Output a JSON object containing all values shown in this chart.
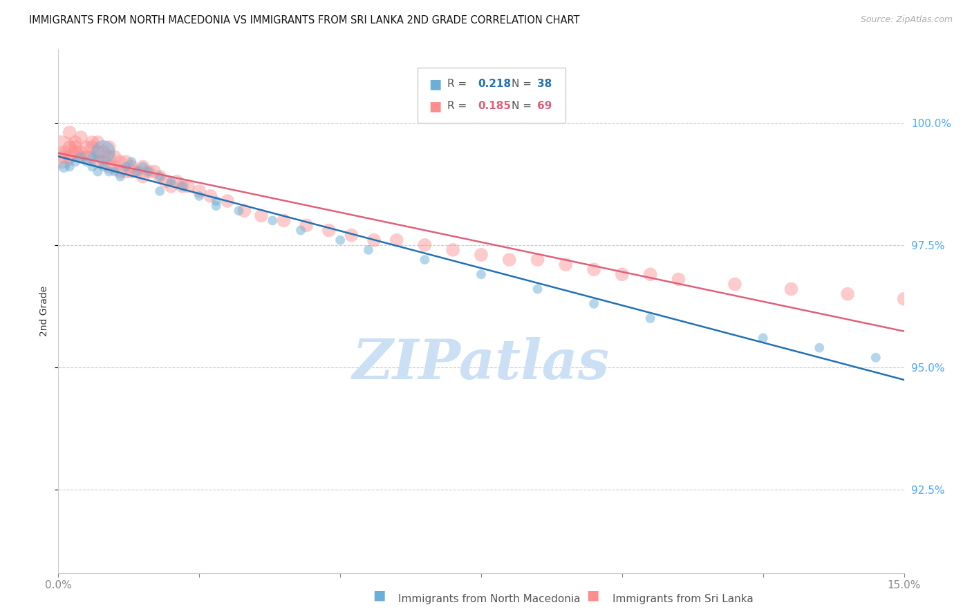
{
  "title": "IMMIGRANTS FROM NORTH MACEDONIA VS IMMIGRANTS FROM SRI LANKA 2ND GRADE CORRELATION CHART",
  "source": "Source: ZipAtlas.com",
  "ylabel": "2nd Grade",
  "ytick_values": [
    1.0,
    0.975,
    0.95,
    0.925
  ],
  "xmin": 0.0,
  "xmax": 0.15,
  "ymin": 0.908,
  "ymax": 1.015,
  "blue_color": "#6baed6",
  "pink_color": "#fc8d8d",
  "blue_line_color": "#2171b5",
  "pink_line_color": "#e0607a",
  "legend_R_blue": "0.218",
  "legend_N_blue": "38",
  "legend_R_pink": "0.185",
  "legend_N_pink": "69",
  "background_color": "#ffffff",
  "grid_color": "#cccccc",
  "tick_color": "#4da6ff",
  "watermark_text": "ZIPatlas",
  "watermark_color": "#cce0f5",
  "blue_scatter_x": [
    0.001,
    0.002,
    0.003,
    0.004,
    0.005,
    0.006,
    0.006,
    0.007,
    0.008,
    0.009,
    0.01,
    0.011,
    0.012,
    0.013,
    0.014,
    0.015,
    0.016,
    0.018,
    0.02,
    0.022,
    0.025,
    0.028,
    0.032,
    0.038,
    0.043,
    0.05,
    0.055,
    0.065,
    0.075,
    0.085,
    0.095,
    0.105,
    0.125,
    0.135,
    0.145,
    0.028,
    0.018,
    0.008
  ],
  "blue_scatter_y": [
    0.991,
    0.991,
    0.992,
    0.993,
    0.992,
    0.993,
    0.991,
    0.99,
    0.991,
    0.99,
    0.99,
    0.989,
    0.991,
    0.992,
    0.99,
    0.991,
    0.99,
    0.989,
    0.988,
    0.987,
    0.985,
    0.983,
    0.982,
    0.98,
    0.978,
    0.976,
    0.974,
    0.972,
    0.969,
    0.966,
    0.963,
    0.96,
    0.956,
    0.954,
    0.952,
    0.984,
    0.986,
    0.994
  ],
  "blue_scatter_s": [
    150,
    100,
    100,
    100,
    100,
    100,
    100,
    100,
    100,
    100,
    100,
    100,
    100,
    100,
    100,
    100,
    100,
    100,
    100,
    100,
    100,
    100,
    100,
    100,
    100,
    100,
    100,
    100,
    100,
    100,
    100,
    100,
    100,
    100,
    100,
    100,
    100,
    600
  ],
  "pink_scatter_x": [
    0.0005,
    0.001,
    0.001,
    0.002,
    0.002,
    0.003,
    0.003,
    0.004,
    0.004,
    0.005,
    0.005,
    0.006,
    0.006,
    0.007,
    0.007,
    0.008,
    0.008,
    0.009,
    0.009,
    0.01,
    0.01,
    0.011,
    0.011,
    0.012,
    0.012,
    0.013,
    0.013,
    0.014,
    0.015,
    0.015,
    0.016,
    0.017,
    0.018,
    0.019,
    0.02,
    0.021,
    0.022,
    0.023,
    0.025,
    0.027,
    0.03,
    0.033,
    0.036,
    0.04,
    0.044,
    0.048,
    0.052,
    0.056,
    0.06,
    0.065,
    0.07,
    0.075,
    0.08,
    0.085,
    0.09,
    0.095,
    0.1,
    0.105,
    0.11,
    0.12,
    0.13,
    0.14,
    0.15,
    0.003,
    0.006,
    0.009,
    0.002,
    0.004,
    0.007
  ],
  "pink_scatter_y": [
    0.994,
    0.994,
    0.993,
    0.995,
    0.993,
    0.995,
    0.994,
    0.994,
    0.993,
    0.995,
    0.993,
    0.995,
    0.993,
    0.994,
    0.992,
    0.994,
    0.992,
    0.993,
    0.991,
    0.993,
    0.991,
    0.992,
    0.99,
    0.992,
    0.99,
    0.991,
    0.99,
    0.99,
    0.991,
    0.989,
    0.99,
    0.99,
    0.989,
    0.988,
    0.987,
    0.988,
    0.987,
    0.987,
    0.986,
    0.985,
    0.984,
    0.982,
    0.981,
    0.98,
    0.979,
    0.978,
    0.977,
    0.976,
    0.976,
    0.975,
    0.974,
    0.973,
    0.972,
    0.972,
    0.971,
    0.97,
    0.969,
    0.969,
    0.968,
    0.967,
    0.966,
    0.965,
    0.964,
    0.996,
    0.996,
    0.995,
    0.998,
    0.997,
    0.996
  ],
  "pink_scatter_s": [
    1200,
    200,
    200,
    200,
    200,
    200,
    200,
    200,
    200,
    200,
    200,
    200,
    200,
    200,
    200,
    200,
    200,
    200,
    200,
    200,
    200,
    200,
    200,
    200,
    200,
    200,
    200,
    200,
    200,
    200,
    200,
    200,
    200,
    200,
    200,
    200,
    200,
    200,
    200,
    200,
    200,
    200,
    200,
    200,
    200,
    200,
    200,
    200,
    200,
    200,
    200,
    200,
    200,
    200,
    200,
    200,
    200,
    200,
    200,
    200,
    200,
    200,
    200,
    200,
    200,
    200,
    200,
    200,
    200
  ]
}
